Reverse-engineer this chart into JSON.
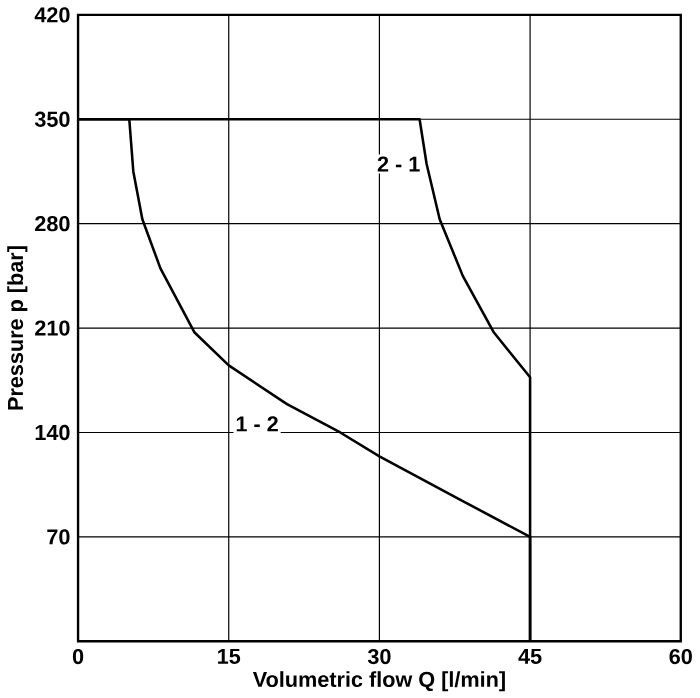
{
  "chart_data": {
    "type": "line",
    "xlabel": "Volumetric flow Q [l/min]",
    "ylabel": "Pressure p [bar]",
    "xlim": [
      0,
      60
    ],
    "ylim": [
      0,
      420
    ],
    "xticks": [
      0,
      15,
      30,
      45,
      60
    ],
    "yticks": [
      {
        "value": 0,
        "label": null
      },
      70,
      140,
      210,
      280,
      350,
      420
    ],
    "grid": true,
    "marker": "none",
    "line_style": "solid",
    "series": [
      {
        "name": "1 - 2",
        "color": "#000000",
        "x": [
          0,
          5.1,
          5.5,
          6.4,
          8.2,
          11.6,
          15,
          20.8,
          26.1,
          30,
          38.3,
          45,
          45,
          0
        ],
        "values": [
          350,
          350,
          315,
          283,
          250,
          207,
          185,
          159,
          140,
          124,
          94,
          70,
          0,
          0
        ]
      },
      {
        "name": "2 - 1",
        "color": "#000000",
        "x": [
          0,
          34,
          34.7,
          36,
          38.3,
          41.4,
          45,
          45
        ],
        "values": [
          350,
          350,
          320,
          283,
          245,
          207,
          177,
          0
        ]
      }
    ]
  }
}
